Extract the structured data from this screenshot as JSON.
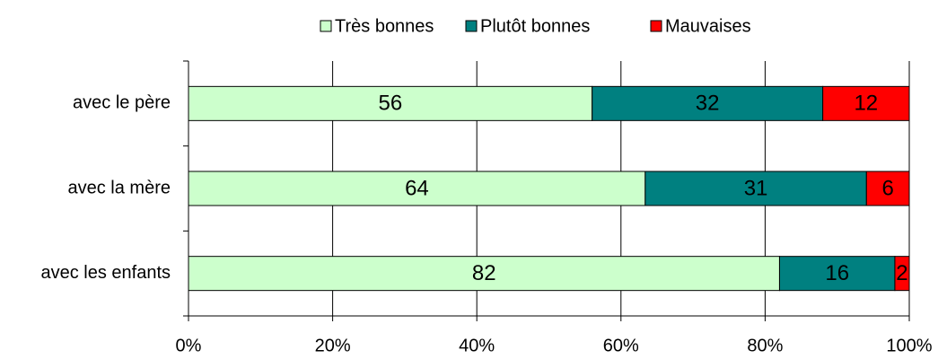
{
  "chart_data": {
    "type": "bar",
    "orientation": "horizontal",
    "stacking": "percent",
    "categories": [
      "avec le père",
      "avec la mère",
      "avec les enfants"
    ],
    "series": [
      {
        "name": "Très bonnes",
        "color": "#ccffcc",
        "values": [
          56,
          64,
          82
        ]
      },
      {
        "name": "Plutôt bonnes",
        "color": "#008080",
        "values": [
          32,
          31,
          16
        ]
      },
      {
        "name": "Mauvaises",
        "color": "#ff0000",
        "values": [
          12,
          6,
          2
        ]
      }
    ],
    "xlim": [
      0,
      100
    ],
    "xticks": [
      {
        "value": 0,
        "label": "0%"
      },
      {
        "value": 20,
        "label": "20%"
      },
      {
        "value": 40,
        "label": "40%"
      },
      {
        "value": 60,
        "label": "60%"
      },
      {
        "value": 80,
        "label": "80%"
      },
      {
        "value": 100,
        "label": "100%"
      }
    ],
    "grid": true,
    "legend": "top"
  }
}
